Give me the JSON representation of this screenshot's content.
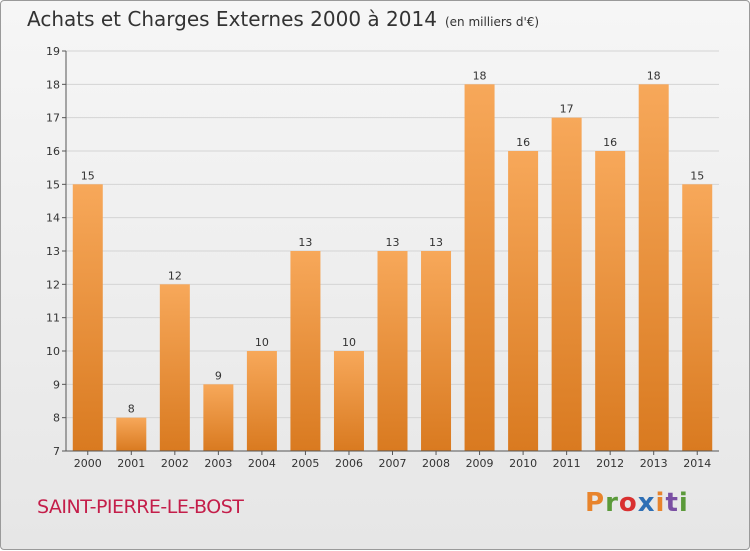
{
  "header": {
    "title": "Achats et Charges Externes 2000 à 2014",
    "unit": "(en milliers d'€)"
  },
  "footer": {
    "commune": "SAINT-PIERRE-LE-BOST",
    "brand": "Proxiti",
    "brand_colors": [
      "#e8842c",
      "#5b9a3a",
      "#d93030",
      "#2e6fb5",
      "#e8842c",
      "#7a4fa3",
      "#5b9a3a"
    ]
  },
  "colors": {
    "bar_light": "#f7a85a",
    "bar_dark": "#d97a20",
    "axis": "#555555",
    "grid": "#d4d4d4",
    "text": "#333333"
  },
  "chart_data": {
    "type": "bar",
    "title": "Achats et Charges Externes 2000 à 2014",
    "categories": [
      "2000",
      "2001",
      "2002",
      "2003",
      "2004",
      "2005",
      "2006",
      "2007",
      "2008",
      "2009",
      "2010",
      "2011",
      "2012",
      "2013",
      "2014"
    ],
    "values": [
      15,
      8,
      12,
      9,
      10,
      13,
      10,
      13,
      13,
      18,
      16,
      17,
      16,
      18,
      15
    ],
    "ylim": [
      7,
      19
    ],
    "yticks": [
      7,
      8,
      9,
      10,
      11,
      12,
      13,
      14,
      15,
      16,
      17,
      18,
      19
    ],
    "grid": true,
    "legend": "none"
  }
}
